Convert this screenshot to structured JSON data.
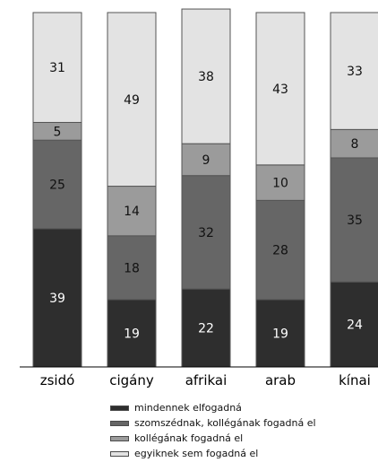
{
  "chart_data": {
    "type": "bar",
    "stacked": true,
    "categories": [
      "zsidó",
      "cigány",
      "afrikai",
      "arab",
      "kínai"
    ],
    "series": [
      {
        "name": "mindennek elfogadná",
        "color": "#2e2e2e",
        "label_color": "#ffffff",
        "values": [
          39,
          19,
          22,
          19,
          24
        ]
      },
      {
        "name": "szomszédnak, kollégának fogadná el",
        "color": "#666666",
        "label_color": "#111111",
        "values": [
          25,
          18,
          32,
          28,
          35
        ]
      },
      {
        "name": "kollégának fogadná el",
        "color": "#9b9b9b",
        "label_color": "#111111",
        "values": [
          5,
          14,
          9,
          10,
          8
        ]
      },
      {
        "name": "egyiknek sem fogadná el",
        "color": "#e3e3e3",
        "label_color": "#111111",
        "values": [
          31,
          49,
          38,
          43,
          33
        ]
      }
    ],
    "ylim": [
      0,
      100
    ],
    "grid": false,
    "legend_position": "bottom"
  }
}
